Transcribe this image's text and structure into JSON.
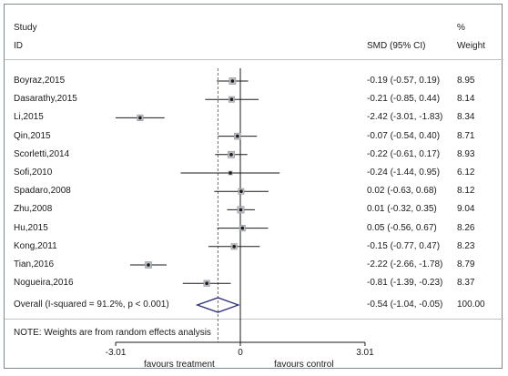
{
  "chart_data": {
    "type": "forest",
    "header": {
      "study_col": "Study",
      "id_col": "ID",
      "ci_col": "SMD (95% CI)",
      "pct_col": "%",
      "weight_col": "Weight"
    },
    "studies": [
      {
        "id": "Boyraz,2015",
        "smd": -0.19,
        "lo": -0.57,
        "hi": 0.19,
        "ci_text": "-0.19 (-0.57, 0.19)",
        "weight": "8.95"
      },
      {
        "id": "Dasarathy,2015",
        "smd": -0.21,
        "lo": -0.85,
        "hi": 0.44,
        "ci_text": "-0.21 (-0.85, 0.44)",
        "weight": "8.14"
      },
      {
        "id": "Li,2015",
        "smd": -2.42,
        "lo": -3.01,
        "hi": -1.83,
        "ci_text": "-2.42 (-3.01, -1.83)",
        "weight": "8.34"
      },
      {
        "id": "Qin,2015",
        "smd": -0.07,
        "lo": -0.54,
        "hi": 0.4,
        "ci_text": "-0.07 (-0.54, 0.40)",
        "weight": "8.71"
      },
      {
        "id": "Scorletti,2014",
        "smd": -0.22,
        "lo": -0.61,
        "hi": 0.17,
        "ci_text": "-0.22 (-0.61, 0.17)",
        "weight": "8.93"
      },
      {
        "id": "Sofi,2010",
        "smd": -0.24,
        "lo": -1.44,
        "hi": 0.95,
        "ci_text": "-0.24 (-1.44, 0.95)",
        "weight": "6.12"
      },
      {
        "id": "Spadaro,2008",
        "smd": 0.02,
        "lo": -0.63,
        "hi": 0.68,
        "ci_text": "0.02 (-0.63, 0.68)",
        "weight": "8.12"
      },
      {
        "id": "Zhu,2008",
        "smd": 0.01,
        "lo": -0.32,
        "hi": 0.35,
        "ci_text": "0.01 (-0.32, 0.35)",
        "weight": "9.04"
      },
      {
        "id": "Hu,2015",
        "smd": 0.05,
        "lo": -0.56,
        "hi": 0.67,
        "ci_text": "0.05 (-0.56, 0.67)",
        "weight": "8.26"
      },
      {
        "id": "Kong,2011",
        "smd": -0.15,
        "lo": -0.77,
        "hi": 0.47,
        "ci_text": "-0.15 (-0.77, 0.47)",
        "weight": "8.23"
      },
      {
        "id": "Tian,2016",
        "smd": -2.22,
        "lo": -2.66,
        "hi": -1.78,
        "ci_text": "-2.22 (-2.66, -1.78)",
        "weight": "8.79"
      },
      {
        "id": "Nogueira,2016",
        "smd": -0.81,
        "lo": -1.39,
        "hi": -0.23,
        "ci_text": "-0.81 (-1.39, -0.23)",
        "weight": "8.37"
      }
    ],
    "overall": {
      "label": "Overall  (I-squared = 91.2%, p < 0.001)",
      "smd": -0.54,
      "lo": -1.04,
      "hi": -0.05,
      "ci_text": "-0.54 (-1.04, -0.05)",
      "weight": "100.00"
    },
    "note": "NOTE: Weights are from random effects analysis",
    "x_ticks": [
      {
        "value": -3.01,
        "label": "-3.01"
      },
      {
        "value": 0,
        "label": "0"
      },
      {
        "value": 3.01,
        "label": "3.01"
      }
    ],
    "xlim": [
      -3.01,
      3.01
    ],
    "left_label": "favours treatment",
    "right_label": "favours control",
    "colors": {
      "ci_line": "#1a1a1a",
      "diamond": "#2b2f78",
      "frame": "#7f8790",
      "dashed_line": "#c0504d"
    }
  }
}
